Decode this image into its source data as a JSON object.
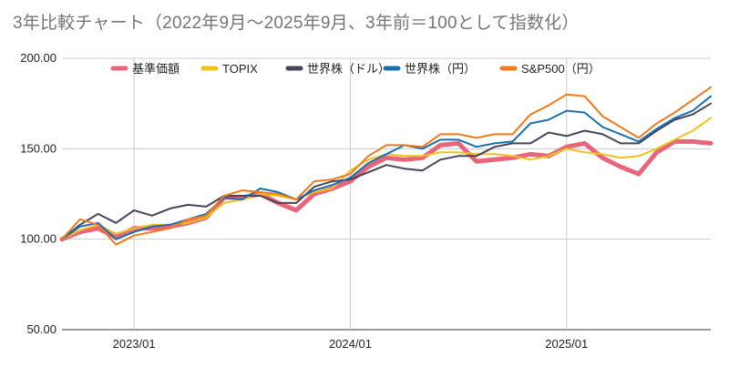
{
  "chart_data": {
    "type": "line",
    "title": "3年比較チャート（2022年9月～2025年9月、3年前＝100として指数化）",
    "ylim": [
      50,
      200
    ],
    "yticks": [
      "50.00",
      "100.00",
      "150.00",
      "200.00"
    ],
    "xticks": [
      {
        "label": "2023/01",
        "date": "2023-01"
      },
      {
        "label": "2024/01",
        "date": "2024-01"
      },
      {
        "label": "2025/01",
        "date": "2025-01"
      }
    ],
    "grid": true,
    "legend_position": "top",
    "x": [
      "2022-09",
      "2022-10",
      "2022-11",
      "2022-12",
      "2023-01",
      "2023-02",
      "2023-03",
      "2023-04",
      "2023-05",
      "2023-06",
      "2023-07",
      "2023-08",
      "2023-09",
      "2023-10",
      "2023-11",
      "2023-12",
      "2024-01",
      "2024-02",
      "2024-03",
      "2024-04",
      "2024-05",
      "2024-06",
      "2024-07",
      "2024-08",
      "2024-09",
      "2024-10",
      "2024-11",
      "2024-12",
      "2025-01",
      "2025-02",
      "2025-03",
      "2025-04",
      "2025-05",
      "2025-06",
      "2025-07",
      "2025-08",
      "2025-09"
    ],
    "series": [
      {
        "name": "基準価額",
        "color": "#e8657a",
        "width": 5,
        "values": [
          100,
          104,
          106,
          101,
          106,
          106,
          107,
          109,
          112,
          123,
          123,
          125,
          120,
          116,
          125,
          128,
          132,
          140,
          145,
          144,
          145,
          152,
          153,
          143,
          144,
          145,
          147,
          146,
          151,
          153,
          145,
          140,
          136,
          148,
          154,
          154,
          153
        ]
      },
      {
        "name": "TOPIX",
        "color": "#f2c21b",
        "width": 2,
        "values": [
          100,
          105,
          108,
          103,
          106,
          108,
          108,
          109,
          112,
          120,
          122,
          125,
          124,
          122,
          126,
          128,
          138,
          144,
          147,
          146,
          146,
          148,
          148,
          147,
          147,
          146,
          144,
          146,
          150,
          148,
          147,
          145,
          146,
          150,
          155,
          160,
          167
        ]
      },
      {
        "name": "世界株（ドル）",
        "color": "#4a4458",
        "width": 2,
        "values": [
          100,
          108,
          114,
          109,
          116,
          113,
          117,
          119,
          118,
          124,
          124,
          124,
          120,
          120,
          129,
          132,
          133,
          137,
          141,
          139,
          138,
          144,
          146,
          146,
          151,
          153,
          153,
          159,
          157,
          160,
          158,
          153,
          153,
          160,
          166,
          169,
          175
        ]
      },
      {
        "name": "世界株（円）",
        "color": "#1a6faf",
        "width": 2,
        "values": [
          100,
          107,
          109,
          100,
          104,
          107,
          108,
          111,
          114,
          123,
          122,
          128,
          126,
          122,
          127,
          130,
          134,
          142,
          147,
          152,
          150,
          155,
          155,
          151,
          153,
          154,
          164,
          166,
          171,
          170,
          162,
          158,
          154,
          161,
          167,
          171,
          179
        ]
      },
      {
        "name": "S&P500（円）",
        "color": "#f07a1c",
        "width": 2,
        "values": [
          100,
          111,
          108,
          97,
          102,
          104,
          106,
          111,
          113,
          124,
          127,
          126,
          125,
          122,
          132,
          133,
          136,
          146,
          152,
          152,
          151,
          158,
          158,
          156,
          158,
          158,
          169,
          174,
          180,
          179,
          168,
          162,
          156,
          164,
          170,
          177,
          184
        ]
      }
    ]
  }
}
